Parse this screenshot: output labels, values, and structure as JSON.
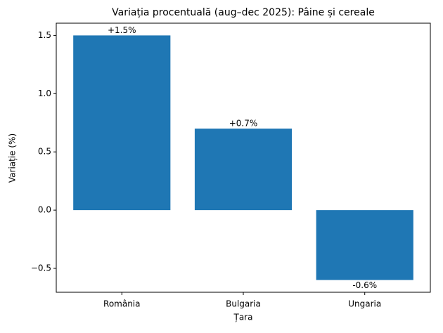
{
  "chart_data": {
    "type": "bar",
    "title": "Variația procentuală (aug–dec 2025): Pâine și cereale",
    "x_label": "Țara",
    "y_label": "Variație (%)",
    "categories": [
      "România",
      "Bulgaria",
      "Ungaria"
    ],
    "values": [
      1.5,
      0.7,
      -0.6
    ],
    "value_labels": [
      "+1.5%",
      "+0.7%",
      "-0.6%"
    ],
    "color": "#1f77b4",
    "ylim": [
      -0.705,
      1.605
    ],
    "yticks": [
      {
        "value": -0.5,
        "label": "−0.5"
      },
      {
        "value": 0,
        "label": "0.0"
      },
      {
        "value": 0.5,
        "label": "0.5"
      },
      {
        "value": 1,
        "label": "1.0"
      },
      {
        "value": 1.5,
        "label": "1.5"
      }
    ],
    "grid": false
  }
}
